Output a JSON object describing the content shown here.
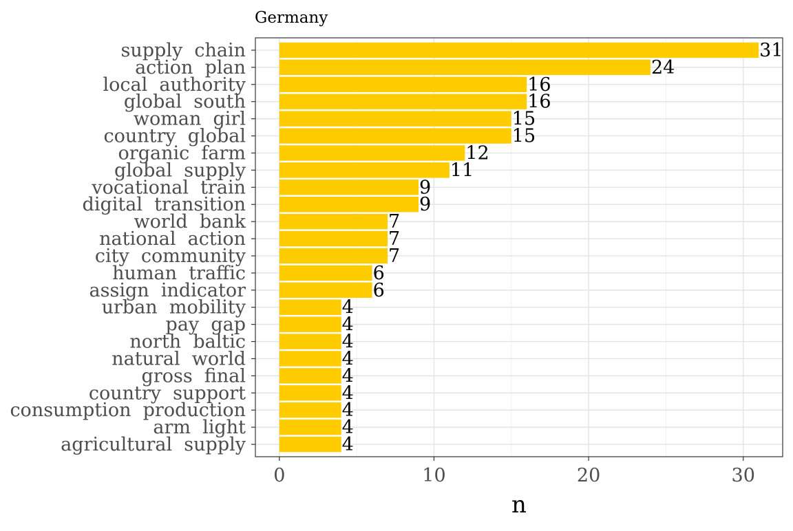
{
  "chart_data": {
    "type": "bar",
    "orientation": "horizontal",
    "title": "Germany",
    "xlabel": "n",
    "ylabel": "",
    "xlim": [
      -1.55,
      32.55
    ],
    "xticks": [
      0,
      10,
      20,
      30
    ],
    "grid": true,
    "legend": "none",
    "bar_color": "#FFCC00",
    "categories": [
      "supply  chain",
      "action  plan",
      "local  authority",
      "global  south",
      "woman  girl",
      "country  global",
      "organic  farm",
      "global  supply",
      "vocational  train",
      "digital  transition",
      "world  bank",
      "national  action",
      "city  community",
      "human  traffic",
      "assign  indicator",
      "urban  mobility",
      "pay  gap",
      "north  baltic",
      "natural  world",
      "gross  final",
      "country  support",
      "consumption  production",
      "arm  light",
      "agricultural  supply"
    ],
    "values": [
      31,
      24,
      16,
      16,
      15,
      15,
      12,
      11,
      9,
      9,
      7,
      7,
      7,
      6,
      6,
      4,
      4,
      4,
      4,
      4,
      4,
      4,
      4,
      4
    ]
  }
}
